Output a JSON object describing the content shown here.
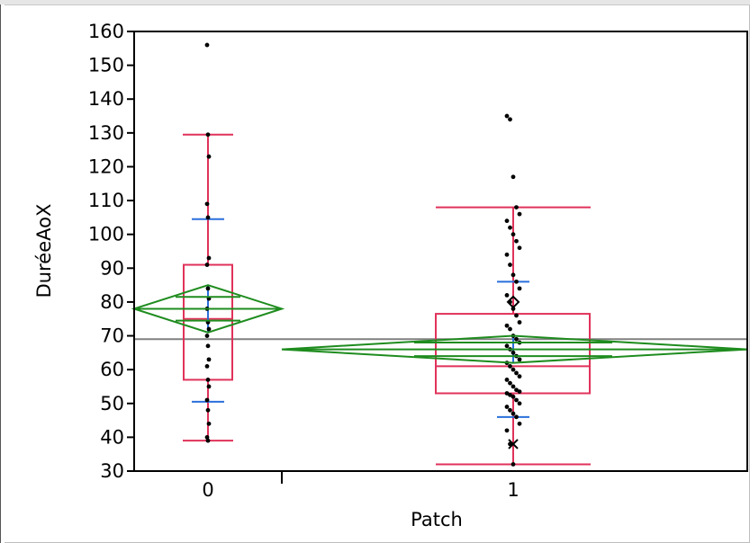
{
  "chart_data": {
    "type": "box",
    "xlabel": "Patch",
    "ylabel": "DuréeAoX",
    "ylim": [
      30,
      160
    ],
    "yticks": [
      30,
      40,
      50,
      60,
      70,
      80,
      90,
      100,
      110,
      120,
      130,
      140,
      150,
      160
    ],
    "categories": [
      "0",
      "1"
    ],
    "grand_mean": 69,
    "colors": {
      "box": "#e0325a",
      "means_diamond": "#1e8c1e",
      "std_dev": "#2a6fdb",
      "grand_mean_line": "#808080",
      "points": "#000000"
    },
    "groups": [
      {
        "name": "0",
        "whisker_low": 39,
        "q1": 57,
        "median": 75,
        "q3": 91,
        "whisker_high": 129.5,
        "mean": 78,
        "mean_ci": [
          71,
          85
        ],
        "std_dev_bars": [
          50.5,
          104.5
        ],
        "points": [
          156,
          129.5,
          123,
          109,
          105,
          93,
          91,
          84,
          81,
          78,
          74,
          72,
          70,
          67,
          63,
          61,
          57,
          55,
          51,
          48,
          44,
          40,
          39
        ]
      },
      {
        "name": "1",
        "whisker_low": 32,
        "q1": 53,
        "median": 61,
        "q3": 76.5,
        "whisker_high": 108,
        "mean": 66,
        "mean_ci": [
          62,
          70
        ],
        "std_dev_bars": [
          46,
          86
        ],
        "points": [
          135,
          134,
          117,
          108,
          106,
          104,
          102,
          100,
          98,
          96,
          94,
          91,
          88,
          86,
          84,
          82,
          80,
          78,
          76,
          74,
          73,
          72,
          70,
          69,
          68,
          67,
          66,
          65,
          64,
          63,
          62,
          61,
          60,
          59,
          58,
          57,
          56,
          55,
          54,
          53.5,
          53,
          52.5,
          52,
          51,
          50,
          49,
          48,
          47,
          46,
          44,
          42,
          38,
          32
        ]
      }
    ]
  }
}
